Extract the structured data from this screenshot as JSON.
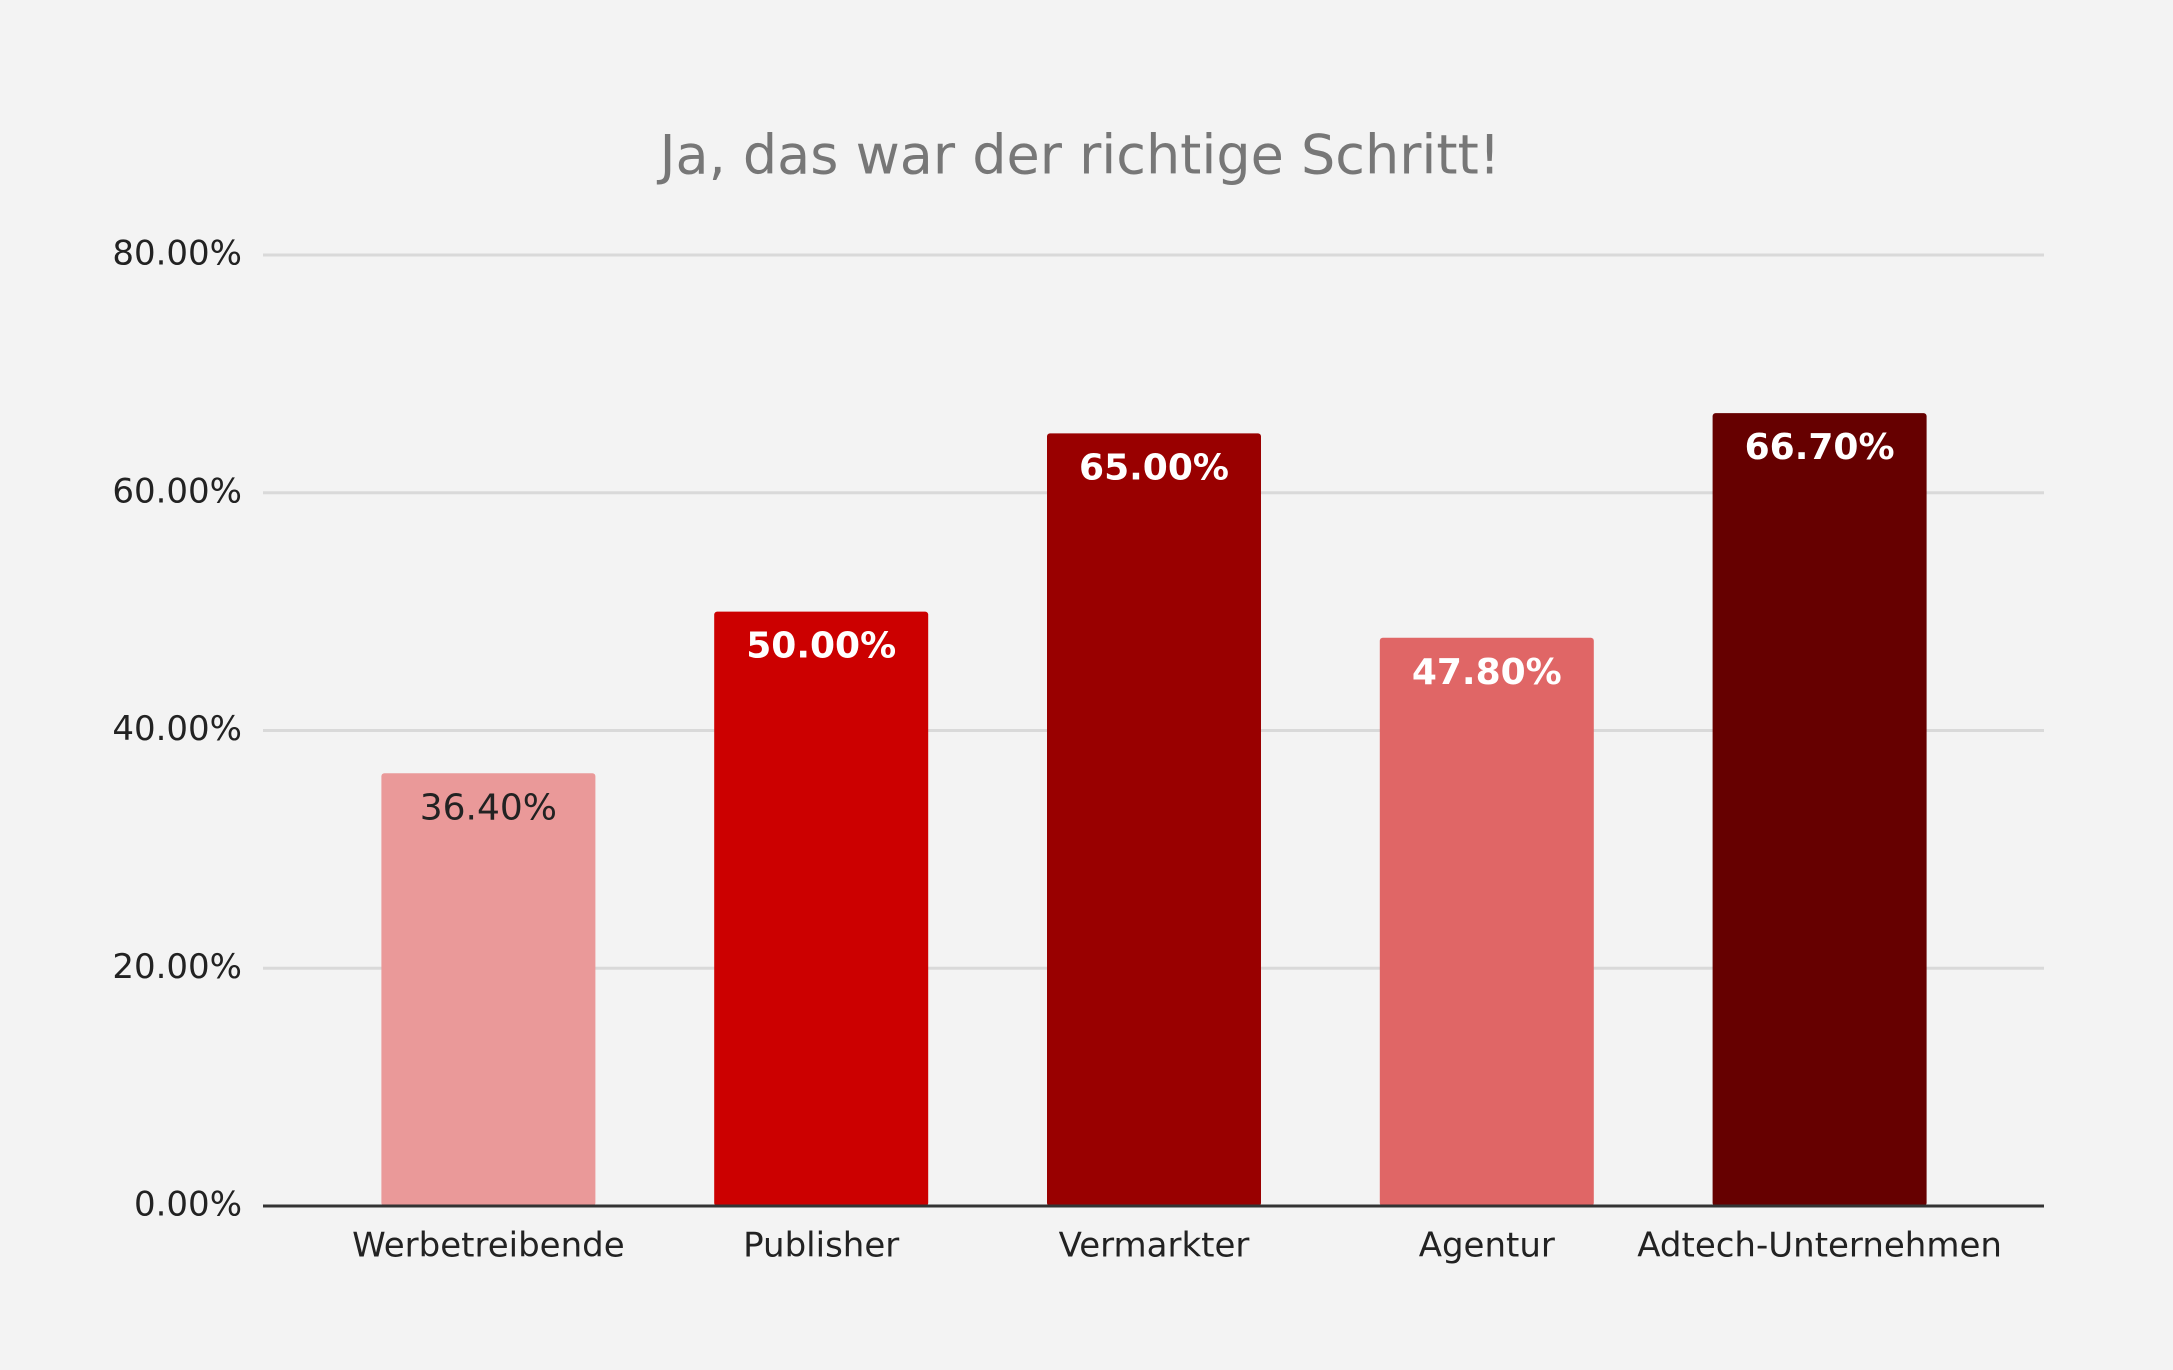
{
  "chart_data": {
    "type": "bar",
    "title": "Ja, das war der richtige Schritt!",
    "categories": [
      "Werbetreibende",
      "Publisher",
      "Vermarkter",
      "Agentur",
      "Adtech-Unternehmen"
    ],
    "values": [
      36.4,
      50,
      65,
      47.8,
      66.7
    ],
    "value_labels": [
      "36.40%",
      "50.00%",
      "65.00%",
      "47.80%",
      "66.70%"
    ],
    "colors": [
      "#ea9999",
      "#cc0000",
      "#990000",
      "#e06666",
      "#660000"
    ],
    "ylim": [
      0,
      80
    ],
    "yticks": [
      {
        "value": 0,
        "label": "0.00%"
      },
      {
        "value": 20,
        "label": "20.00%"
      },
      {
        "value": 40,
        "label": "40.00%"
      },
      {
        "value": 60,
        "label": "60.00%"
      },
      {
        "value": 80,
        "label": "80.00%"
      }
    ],
    "grid": true
  }
}
